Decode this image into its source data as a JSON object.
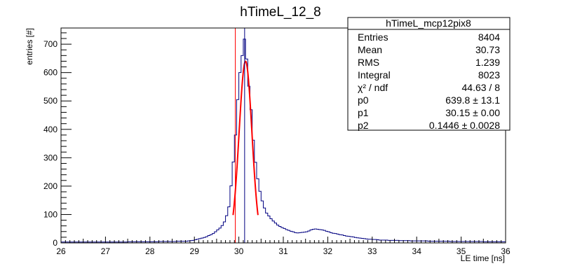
{
  "chart_data": {
    "type": "histogram",
    "title": "hTimeL_12_8",
    "xlabel": "LE time [ns]",
    "ylabel": "entries [#]",
    "xlim": [
      26,
      36
    ],
    "ylim": [
      0,
      757
    ],
    "x_ticks": [
      26,
      27,
      28,
      29,
      30,
      31,
      32,
      33,
      34,
      35,
      36
    ],
    "y_ticks": [
      0,
      100,
      200,
      300,
      400,
      500,
      600,
      700
    ],
    "bin_width": 0.05,
    "grid": false,
    "colors": {
      "histogram": "#000080",
      "fit": "#ff0000",
      "markers": [
        "#ff0000",
        "#000080"
      ]
    },
    "vertical_lines": [
      {
        "x": 29.92,
        "color": "#ff0000"
      },
      {
        "x": 30.13,
        "color": "#000080"
      }
    ],
    "histogram_profile": [
      {
        "x": 26.0,
        "y": 3
      },
      {
        "x": 27.0,
        "y": 3
      },
      {
        "x": 28.0,
        "y": 4
      },
      {
        "x": 28.8,
        "y": 6
      },
      {
        "x": 29.0,
        "y": 10
      },
      {
        "x": 29.2,
        "y": 18
      },
      {
        "x": 29.4,
        "y": 30
      },
      {
        "x": 29.6,
        "y": 55
      },
      {
        "x": 29.7,
        "y": 80
      },
      {
        "x": 29.78,
        "y": 130
      },
      {
        "x": 29.85,
        "y": 240
      },
      {
        "x": 29.9,
        "y": 330
      },
      {
        "x": 29.95,
        "y": 430
      },
      {
        "x": 30.0,
        "y": 580
      },
      {
        "x": 30.05,
        "y": 620
      },
      {
        "x": 30.1,
        "y": 700
      },
      {
        "x": 30.13,
        "y": 722
      },
      {
        "x": 30.18,
        "y": 640
      },
      {
        "x": 30.22,
        "y": 560
      },
      {
        "x": 30.27,
        "y": 480
      },
      {
        "x": 30.32,
        "y": 370
      },
      {
        "x": 30.37,
        "y": 290
      },
      {
        "x": 30.42,
        "y": 230
      },
      {
        "x": 30.5,
        "y": 160
      },
      {
        "x": 30.6,
        "y": 110
      },
      {
        "x": 30.75,
        "y": 80
      },
      {
        "x": 30.9,
        "y": 60
      },
      {
        "x": 31.1,
        "y": 45
      },
      {
        "x": 31.3,
        "y": 35
      },
      {
        "x": 31.5,
        "y": 38
      },
      {
        "x": 31.7,
        "y": 50
      },
      {
        "x": 31.9,
        "y": 45
      },
      {
        "x": 32.1,
        "y": 35
      },
      {
        "x": 32.4,
        "y": 25
      },
      {
        "x": 32.8,
        "y": 15
      },
      {
        "x": 33.2,
        "y": 10
      },
      {
        "x": 34.0,
        "y": 7
      },
      {
        "x": 35.0,
        "y": 5
      },
      {
        "x": 36.0,
        "y": 4
      }
    ],
    "fit": {
      "function": "gaus",
      "p0": 639.8,
      "p1": 30.15,
      "p2": 0.1446,
      "x_range": [
        29.87,
        30.43
      ]
    },
    "stats_box": {
      "title": "hTimeL_mcp12pix8",
      "rows": [
        {
          "label": "Entries",
          "value": "8404"
        },
        {
          "label": "Mean",
          "value": "30.73"
        },
        {
          "label": "RMS",
          "value": "1.239"
        },
        {
          "label": "Integral",
          "value": "8023"
        },
        {
          "label": "χ² / ndf",
          "value": "44.63 / 8"
        },
        {
          "label": "p0",
          "value": "639.8 ± 13.1"
        },
        {
          "label": "p1",
          "value": "30.15 ± 0.00"
        },
        {
          "label": "p2",
          "value": "0.1446 ± 0.0028"
        }
      ]
    }
  }
}
